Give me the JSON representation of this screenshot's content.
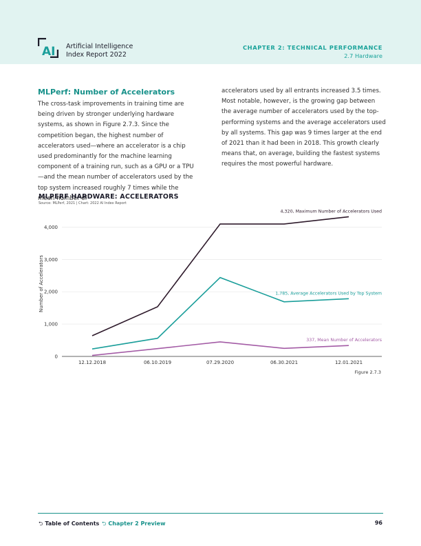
{
  "header": {
    "brand_line1": "Artificial Intelligence",
    "brand_line2": "Index Report 2022",
    "chapter": "CHAPTER 2: TECHNICAL PERFORMANCE",
    "section": "2.7 Hardware",
    "logo_icon": "ai-index-logo"
  },
  "article": {
    "title": "MLPerf: Number of Accelerators",
    "left_text": "The cross-task improvements in training time are being driven by stronger underlying hardware systems, as shown in Figure 2.7.3. Since the competition began, the highest number of accelerators used—where an accelerator is a chip used predominantly for the machine learning component of a training run, such as a GPU or a TPU—and the mean number of accelerators used by the top system increased roughly 7 times while the mean number of",
    "right_text": "accelerators used by all entrants increased 3.5 times. Most notable, however, is the growing gap between the average number of accelerators used by the top-performing systems and the average accelerators used by all systems. This gap was 9 times larger at the end of 2021 than it had been in 2018. This growth clearly means that, on average, building the fastest systems requires the most powerful hardware."
  },
  "chart": {
    "title": "MLPERF HARDWARE: ACCELERATORS",
    "source": "Source: MLPerf, 2021 | Chart: 2022 AI Index Report",
    "figure_label": "Figure 2.7.3"
  },
  "chart_data": {
    "type": "line",
    "x": [
      "12.12.2018",
      "06.10.2019",
      "07.29.2020",
      "06.30.2021",
      "12.01.2021"
    ],
    "ylabel": "Number of Accelerators",
    "xlabel": "",
    "ylim": [
      0,
      4500
    ],
    "yticks": [
      0,
      1000,
      2000,
      3000,
      4000
    ],
    "ytick_labels": [
      "0",
      "1,000",
      "2,000",
      "3,000",
      "4,000"
    ],
    "grid": "horizontal",
    "series": [
      {
        "name": "Maximum Number of Accelerators Used",
        "color": "#2e1a2b",
        "values": [
          640,
          1536,
          4096,
          4096,
          4320
        ],
        "end_label": "4,320, Maximum Number of Accelerators Used"
      },
      {
        "name": "Average Accelerators Used by Top System",
        "color": "#1a9e9a",
        "values": [
          230,
          560,
          2440,
          1690,
          1785
        ],
        "end_label": "1,785, Average Accelerators Used by Top System"
      },
      {
        "name": "Mean Number of Accelerators",
        "color": "#a35ba5",
        "values": [
          30,
          240,
          450,
          250,
          337
        ],
        "end_label": "337, Mean Number of Accelerators"
      }
    ]
  },
  "footer": {
    "toc": "Table of Contents",
    "preview": "Chapter 2 Preview",
    "page": "96"
  }
}
